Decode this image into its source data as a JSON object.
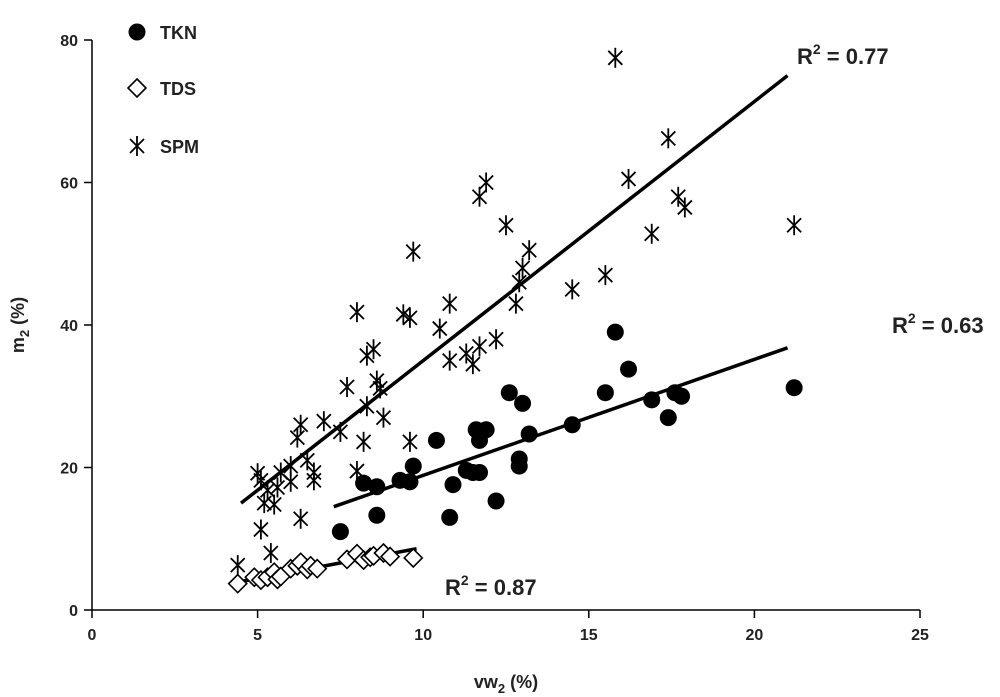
{
  "chart_data": {
    "type": "scatter",
    "xlabel_main": "vw",
    "xlabel_sub": "2",
    "xlabel_unit": " (%)",
    "ylabel_main": "m",
    "ylabel_sub": "2",
    "ylabel_unit": " (%)",
    "xlim": [
      0,
      25
    ],
    "ylim": [
      0,
      80
    ],
    "xticks": [
      "0",
      "5",
      "10",
      "15",
      "20",
      "25"
    ],
    "yticks": [
      "0",
      "20",
      "40",
      "60",
      "80"
    ],
    "legend_position": "top-left",
    "series": [
      {
        "name": "TKN",
        "marker": "filled-circle",
        "color": "#000000",
        "points": [
          [
            7.5,
            11.0
          ],
          [
            8.2,
            17.8
          ],
          [
            8.6,
            17.3
          ],
          [
            8.6,
            13.3
          ],
          [
            9.3,
            18.2
          ],
          [
            9.6,
            18.0
          ],
          [
            9.7,
            20.2
          ],
          [
            10.4,
            23.8
          ],
          [
            10.8,
            13.0
          ],
          [
            10.9,
            17.6
          ],
          [
            11.3,
            19.6
          ],
          [
            11.5,
            19.3
          ],
          [
            11.7,
            19.3
          ],
          [
            11.6,
            25.3
          ],
          [
            11.7,
            23.8
          ],
          [
            11.9,
            25.3
          ],
          [
            12.2,
            15.3
          ],
          [
            12.6,
            30.5
          ],
          [
            12.9,
            21.2
          ],
          [
            12.9,
            20.2
          ],
          [
            13.0,
            29.0
          ],
          [
            13.2,
            24.7
          ],
          [
            14.5,
            26.0
          ],
          [
            15.5,
            30.5
          ],
          [
            15.8,
            39.0
          ],
          [
            16.2,
            33.8
          ],
          [
            16.9,
            29.5
          ],
          [
            17.4,
            27.0
          ],
          [
            17.6,
            30.5
          ],
          [
            17.8,
            30.0
          ],
          [
            21.2,
            31.2
          ]
        ],
        "fit": {
          "x": [
            7.3,
            21.0
          ],
          "y": [
            14.5,
            36.8
          ]
        },
        "r2_label": "R² = 0.63",
        "r2_main": "R",
        "r2_sup": "2",
        "r2_rest": " = 0.63"
      },
      {
        "name": "TDS",
        "marker": "open-diamond",
        "color": "#000000",
        "points": [
          [
            4.4,
            3.7
          ],
          [
            4.9,
            4.6
          ],
          [
            5.1,
            4.2
          ],
          [
            5.3,
            4.6
          ],
          [
            5.5,
            5.3
          ],
          [
            5.6,
            4.3
          ],
          [
            5.7,
            4.7
          ],
          [
            6.0,
            5.8
          ],
          [
            6.2,
            6.2
          ],
          [
            6.3,
            6.7
          ],
          [
            6.5,
            5.7
          ],
          [
            6.6,
            6.2
          ],
          [
            6.8,
            5.8
          ],
          [
            7.7,
            7.1
          ],
          [
            8.0,
            7.9
          ],
          [
            8.2,
            7.0
          ],
          [
            8.4,
            7.4
          ],
          [
            8.5,
            7.6
          ],
          [
            8.8,
            8.0
          ],
          [
            9.0,
            7.5
          ],
          [
            9.7,
            7.3
          ]
        ],
        "fit": {
          "x": [
            4.5,
            9.8
          ],
          "y": [
            4.0,
            8.6
          ]
        },
        "r2_label": "R² = 0.87",
        "r2_main": "R",
        "r2_sup": "2",
        "r2_rest": " = 0.87"
      },
      {
        "name": "SPM",
        "marker": "asterisk",
        "color": "#000000",
        "points": [
          [
            4.4,
            6.3
          ],
          [
            5.0,
            19.2
          ],
          [
            5.1,
            18.2
          ],
          [
            5.1,
            11.3
          ],
          [
            5.2,
            15.0
          ],
          [
            5.3,
            16.8
          ],
          [
            5.4,
            8.0
          ],
          [
            5.5,
            14.8
          ],
          [
            5.6,
            17.2
          ],
          [
            5.7,
            19.3
          ],
          [
            6.0,
            18.0
          ],
          [
            6.0,
            20.2
          ],
          [
            6.2,
            24.2
          ],
          [
            6.3,
            26.0
          ],
          [
            6.3,
            12.8
          ],
          [
            6.5,
            21.0
          ],
          [
            6.7,
            19.3
          ],
          [
            6.7,
            18.2
          ],
          [
            7.0,
            26.5
          ],
          [
            7.5,
            25.0
          ],
          [
            7.7,
            31.3
          ],
          [
            8.0,
            19.5
          ],
          [
            8.0,
            41.8
          ],
          [
            8.2,
            23.6
          ],
          [
            8.3,
            35.7
          ],
          [
            8.3,
            28.6
          ],
          [
            8.5,
            36.6
          ],
          [
            8.6,
            32.2
          ],
          [
            8.7,
            31.1
          ],
          [
            8.8,
            27.0
          ],
          [
            9.4,
            41.5
          ],
          [
            9.6,
            41.0
          ],
          [
            9.6,
            23.6
          ],
          [
            9.7,
            50.3
          ],
          [
            10.5,
            39.5
          ],
          [
            10.8,
            43.0
          ],
          [
            10.8,
            35.0
          ],
          [
            11.3,
            36.0
          ],
          [
            11.5,
            34.5
          ],
          [
            11.7,
            58.0
          ],
          [
            11.7,
            37.0
          ],
          [
            11.9,
            60.0
          ],
          [
            12.2,
            38.0
          ],
          [
            12.5,
            54.0
          ],
          [
            12.8,
            43.0
          ],
          [
            12.9,
            46.0
          ],
          [
            13.0,
            48.0
          ],
          [
            13.2,
            50.5
          ],
          [
            14.5,
            45.0
          ],
          [
            15.5,
            47.0
          ],
          [
            15.8,
            77.5
          ],
          [
            16.2,
            60.5
          ],
          [
            16.9,
            52.8
          ],
          [
            17.4,
            66.2
          ],
          [
            17.7,
            58.0
          ],
          [
            17.9,
            56.5
          ],
          [
            21.2,
            54.0
          ]
        ],
        "fit": {
          "x": [
            4.5,
            21.0
          ],
          "y": [
            15.0,
            75.0
          ]
        },
        "r2_label": "R² = 0.77",
        "r2_main": "R",
        "r2_sup": "2",
        "r2_rest": " = 0.77"
      }
    ]
  }
}
